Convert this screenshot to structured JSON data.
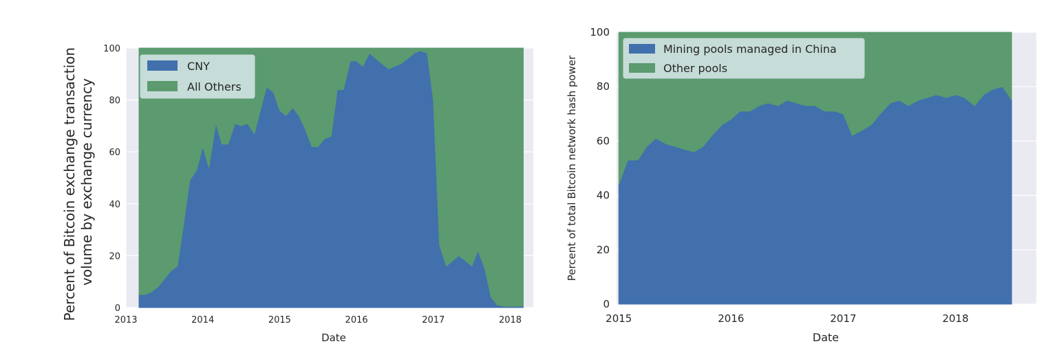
{
  "colors": {
    "primary": "#4170ad",
    "secondary": "#5b9b6f",
    "panel_bg": "#eaeaf2",
    "grid": "#ffffff",
    "legend_bg": "#c6dcd8"
  },
  "chart_data": [
    {
      "type": "area",
      "stacked": true,
      "xlabel": "Date",
      "ylabel_lines": [
        "Percent of Bitcoin exchange transaction",
        "volume by exchange currency"
      ],
      "xlim": [
        2013.0,
        2018.3
      ],
      "ylim": [
        0,
        100
      ],
      "xticks": [
        2013,
        2014,
        2015,
        2016,
        2017,
        2018
      ],
      "xtick_labels": [
        "2013",
        "2014",
        "2015",
        "2016",
        "2017",
        "2018"
      ],
      "yticks": [
        0,
        20,
        40,
        60,
        80,
        100
      ],
      "ytick_labels": [
        "0",
        "20",
        "40",
        "60",
        "80",
        "100"
      ],
      "legend_position": "upper-left",
      "x": [
        2013.17,
        2013.25,
        2013.33,
        2013.42,
        2013.5,
        2013.58,
        2013.67,
        2013.75,
        2013.83,
        2013.92,
        2014.0,
        2014.08,
        2014.17,
        2014.25,
        2014.33,
        2014.42,
        2014.5,
        2014.58,
        2014.67,
        2014.75,
        2014.83,
        2014.92,
        2015.0,
        2015.08,
        2015.17,
        2015.25,
        2015.33,
        2015.42,
        2015.5,
        2015.58,
        2015.67,
        2015.75,
        2015.83,
        2015.92,
        2016.0,
        2016.08,
        2016.17,
        2016.25,
        2016.33,
        2016.42,
        2016.5,
        2016.58,
        2016.67,
        2016.75,
        2016.83,
        2016.92,
        2017.0,
        2017.08,
        2017.17,
        2017.25,
        2017.33,
        2017.42,
        2017.5,
        2017.58,
        2017.67,
        2017.75,
        2017.83,
        2017.92,
        2018.0,
        2018.08,
        2018.17
      ],
      "series": [
        {
          "name": "CNY",
          "values": [
            5,
            5,
            6,
            8,
            11,
            14,
            16,
            32,
            49,
            53,
            62,
            54,
            71,
            63,
            63,
            71,
            70,
            71,
            67,
            76,
            85,
            83,
            76,
            74,
            77,
            74,
            69,
            62,
            62,
            65,
            66,
            84,
            84,
            95,
            95,
            93,
            98,
            96,
            94,
            92,
            93,
            94,
            96,
            98,
            99,
            98,
            80,
            24,
            16,
            18,
            20,
            18,
            16,
            22,
            15,
            4,
            1,
            0.5,
            0.5,
            0.5,
            0.5
          ]
        },
        {
          "name": "All Others",
          "values": [
            95,
            95,
            94,
            92,
            89,
            86,
            84,
            68,
            51,
            47,
            38,
            46,
            29,
            37,
            37,
            29,
            30,
            29,
            33,
            24,
            15,
            17,
            24,
            26,
            23,
            26,
            31,
            38,
            38,
            35,
            34,
            16,
            16,
            5,
            5,
            7,
            2,
            4,
            6,
            8,
            7,
            6,
            4,
            2,
            1,
            2,
            20,
            76,
            84,
            82,
            80,
            82,
            84,
            78,
            85,
            96,
            99,
            99.5,
            99.5,
            99.5,
            99.5
          ]
        }
      ]
    },
    {
      "type": "area",
      "stacked": true,
      "xlabel": "Date",
      "ylabel": "Percent of total Bitcoin network hash power",
      "xlim": [
        2014.98,
        3.72
      ],
      "ylim": [
        0,
        100
      ],
      "xticks": [
        2015,
        2016,
        2017,
        2018
      ],
      "xtick_labels": [
        "2015",
        "2016",
        "2017",
        "2018"
      ],
      "yticks": [
        0,
        20,
        40,
        60,
        80,
        100
      ],
      "ytick_labels": [
        "0",
        "20",
        "40",
        "60",
        "80",
        "100"
      ],
      "legend_position": "upper-left",
      "x": [
        2015.0,
        2015.08,
        2015.17,
        2015.25,
        2015.33,
        2015.42,
        2015.5,
        2015.58,
        2015.67,
        2015.75,
        2015.83,
        2015.92,
        2016.0,
        2016.08,
        2016.17,
        2016.25,
        2016.33,
        2016.42,
        2016.5,
        2016.58,
        2016.67,
        2016.75,
        2016.83,
        2016.92,
        2017.0,
        2017.08,
        2017.17,
        2017.25,
        2017.33,
        2017.42,
        2017.5,
        2017.58,
        2017.67,
        2017.75,
        2017.83,
        2017.92,
        2018.0,
        2018.08,
        2018.17,
        2018.25,
        2018.33,
        2018.42,
        2018.5
      ],
      "series": [
        {
          "name": "Mining pools managed in China",
          "values": [
            44,
            53,
            53,
            58,
            61,
            59,
            58,
            57,
            56,
            58,
            62,
            66,
            68,
            71,
            71,
            73,
            74,
            73,
            75,
            74,
            73,
            73,
            71,
            71,
            70,
            62,
            64,
            66,
            70,
            74,
            75,
            73,
            75,
            76,
            77,
            76,
            77,
            76,
            73,
            77,
            79,
            80,
            75
          ]
        },
        {
          "name": "Other pools",
          "values": [
            56,
            47,
            47,
            42,
            39,
            41,
            42,
            43,
            44,
            42,
            38,
            34,
            32,
            29,
            29,
            27,
            26,
            27,
            25,
            26,
            27,
            27,
            29,
            29,
            30,
            38,
            36,
            34,
            30,
            26,
            25,
            27,
            25,
            24,
            23,
            24,
            23,
            24,
            27,
            23,
            21,
            20,
            25
          ]
        }
      ]
    }
  ]
}
